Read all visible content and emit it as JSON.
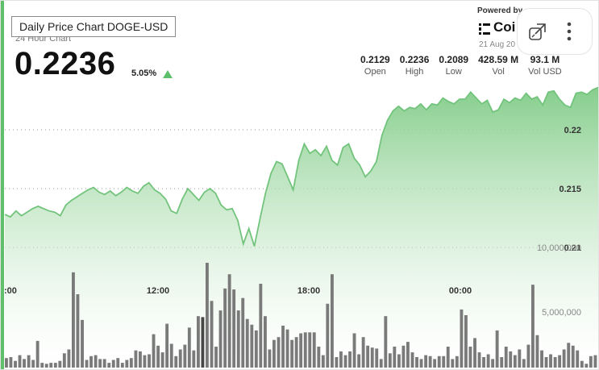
{
  "tooltip": "Daily Price Chart DOGE-USD",
  "subtitle": "24 Hour Chart",
  "price": "0.2236",
  "change": "5.05%",
  "stats": [
    {
      "value": "0.2129",
      "label": "Open"
    },
    {
      "value": "0.2236",
      "label": "High"
    },
    {
      "value": "0.2089",
      "label": "Low"
    },
    {
      "value": "428.59 M",
      "label": "Vol"
    },
    {
      "value": "93.1 M",
      "label": "Vol USD"
    }
  ],
  "brand": {
    "powered_by": "Powered by",
    "name": "CoinDesk",
    "name_visible": "Coi",
    "date": "21 Aug 20"
  },
  "icons": {
    "expand": "external-expand-icon",
    "more": "more-vertical-icon",
    "brand": "brand-logo-icon",
    "trend": "triangle-up-icon"
  },
  "colors": {
    "accent": "#5fbf6a",
    "line": "#72c47c",
    "volume": "#6b6b6b",
    "volume_highlight": "#333333"
  },
  "chart_data": {
    "type": "area",
    "x_ticks": [
      ":00",
      "12:00",
      "18:00",
      "00:00"
    ],
    "y_ticks": [
      {
        "value": 0.22,
        "label": "0.22"
      },
      {
        "value": 0.215,
        "label": "0.215"
      },
      {
        "value": 0.21,
        "label": "0.21"
      }
    ],
    "volume_ticks": [
      {
        "value": 10000000,
        "label": "10,000,000"
      },
      {
        "value": 5000000,
        "label": "5,000,000"
      }
    ],
    "ylim": [
      0.2089,
      0.2236
    ],
    "grid": true,
    "price": [
      0.2128,
      0.2126,
      0.2131,
      0.2127,
      0.213,
      0.2133,
      0.2135,
      0.2133,
      0.2131,
      0.213,
      0.2127,
      0.2136,
      0.214,
      0.2143,
      0.2146,
      0.2149,
      0.2151,
      0.2147,
      0.2145,
      0.2148,
      0.2144,
      0.2147,
      0.2151,
      0.2148,
      0.2146,
      0.2152,
      0.2155,
      0.2149,
      0.2146,
      0.2141,
      0.2131,
      0.2129,
      0.2141,
      0.215,
      0.2145,
      0.214,
      0.2147,
      0.215,
      0.2146,
      0.2136,
      0.2132,
      0.2133,
      0.2123,
      0.2103,
      0.2116,
      0.2101,
      0.2124,
      0.2146,
      0.2163,
      0.2173,
      0.2171,
      0.216,
      0.2149,
      0.2174,
      0.2188,
      0.218,
      0.2183,
      0.2178,
      0.2186,
      0.2174,
      0.217,
      0.2185,
      0.2188,
      0.2176,
      0.217,
      0.216,
      0.2165,
      0.2173,
      0.2195,
      0.2208,
      0.2216,
      0.222,
      0.2216,
      0.2219,
      0.2218,
      0.2222,
      0.2217,
      0.2222,
      0.2221,
      0.2227,
      0.2224,
      0.2222,
      0.2226,
      0.2226,
      0.2232,
      0.2227,
      0.2222,
      0.2225,
      0.2215,
      0.2217,
      0.2226,
      0.2223,
      0.2227,
      0.2225,
      0.2231,
      0.2226,
      0.2228,
      0.2221,
      0.2232,
      0.2233,
      0.2226,
      0.2221,
      0.2219,
      0.2231,
      0.2232,
      0.223,
      0.2234,
      0.2236
    ],
    "volume": [
      1000000,
      1100000,
      700000,
      1300000,
      900000,
      1300000,
      800000,
      2800000,
      500000,
      400000,
      500000,
      500000,
      700000,
      1500000,
      1900000,
      10000000,
      7700000,
      5000000,
      800000,
      1200000,
      1300000,
      900000,
      900000,
      500000,
      800000,
      1000000,
      500000,
      800000,
      1000000,
      1800000,
      1700000,
      1300000,
      1400000,
      3500000,
      2300000,
      1600000,
      4600000,
      2500000,
      1200000,
      1900000,
      2400000,
      4200000,
      1800000,
      5400000,
      5300000,
      11000000,
      7000000,
      2200000,
      6000000,
      8300000,
      9800000,
      8200000,
      6000000,
      7300000,
      5100000,
      4500000,
      3900000,
      8800000,
      5400000,
      1900000,
      2900000,
      3200000,
      4400000,
      4000000,
      2900000,
      3200000,
      3600000,
      3700000,
      3700000,
      3700000,
      2200000,
      1300000,
      6700000,
      9800000,
      1100000,
      1700000,
      1300000,
      1700000,
      3600000,
      1400000,
      3200000,
      2300000,
      2100000,
      2000000,
      900000,
      5400000,
      1500000,
      2200000,
      1400000,
      2300000,
      2700000,
      1600000,
      1100000,
      900000,
      1300000,
      1200000,
      900000,
      1200000,
      1200000,
      2200000,
      900000,
      1200000,
      6100000,
      5500000,
      2200000,
      3100000,
      1600000,
      1100000,
      1400000,
      900000,
      3900000,
      1100000,
      2200000,
      1700000,
      1300000,
      1900000,
      900000,
      2400000,
      8700000,
      3400000,
      1800000,
      1100000,
      1400000,
      1100000,
      1300000,
      1900000,
      2600000,
      2300000,
      1800000,
      700000,
      400000,
      1200000,
      1300000
    ]
  }
}
